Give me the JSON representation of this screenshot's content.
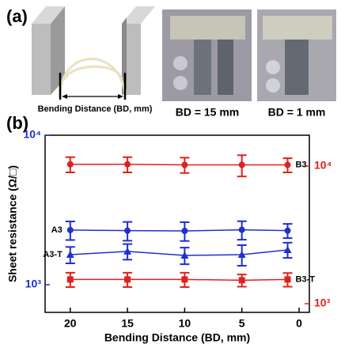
{
  "panel_a": {
    "label": "(a)",
    "diagram_caption": "Bending Distance (BD, mm)",
    "photo_captions": [
      "BD = 15 mm",
      "BD = 1 mm"
    ]
  },
  "panel_b": {
    "label": "(b)"
  },
  "chart_data": {
    "type": "line",
    "x_label": "Bending Distance (BD, mm)",
    "y_label": "Sheet resistance (Ω/□)",
    "x": [
      20,
      15,
      10,
      5,
      1
    ],
    "xlim": [
      22.2,
      -0.9
    ],
    "xticks": [
      20,
      15,
      10,
      5,
      0
    ],
    "ylim": [
      653,
      10000
    ],
    "yticks": [
      {
        "value": 1000,
        "label": "10³"
      },
      {
        "value": 10000,
        "label": "10⁴"
      }
    ],
    "y2lim": [
      865,
      16750
    ],
    "y2ticks": [
      {
        "value": 1000,
        "label": "10³"
      },
      {
        "value": 10000,
        "label": "10⁴"
      }
    ],
    "log_scale": true,
    "y_axis_color": "#1f2fd0",
    "y2_axis_color": "#e0201f",
    "series": [
      {
        "name": "B3",
        "color": "#e0201f",
        "axis": "y2",
        "marker": "circle",
        "values": [
          10300,
          10300,
          10200,
          10200,
          10200
        ],
        "errors": [
          1300,
          1300,
          1300,
          1800,
          1200
        ]
      },
      {
        "name": "A3",
        "color": "#1f2fd0",
        "marker": "circle",
        "values": [
          2320,
          2300,
          2290,
          2330,
          2300
        ],
        "errors": [
          330,
          330,
          330,
          330,
          250
        ]
      },
      {
        "name": "A3-T",
        "color": "#1f2fd0",
        "marker": "triangle",
        "values": [
          1590,
          1670,
          1570,
          1590,
          1710
        ],
        "errors": [
          200,
          200,
          200,
          250,
          200
        ]
      },
      {
        "name": "B3-T",
        "color": "#e0201f",
        "axis": "y2",
        "marker": "square",
        "values": [
          1500,
          1500,
          1500,
          1480,
          1500
        ],
        "errors": [
          180,
          180,
          180,
          150,
          170
        ]
      }
    ]
  }
}
